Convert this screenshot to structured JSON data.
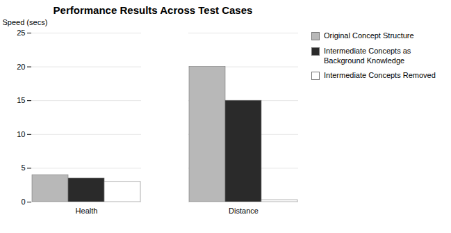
{
  "chart_data": {
    "type": "bar",
    "title": "Performance Results Across Test Cases",
    "ylabel": "Speed (secs)",
    "categories": [
      "Health",
      "Distance"
    ],
    "series": [
      {
        "name": "Original Concept Structure",
        "color": "#b8b8b8",
        "values": [
          4.0,
          20.0
        ]
      },
      {
        "name": "Intermediate Concepts as\nBackground Knowledge",
        "color": "#2a2a2a",
        "values": [
          3.5,
          15.0
        ]
      },
      {
        "name": "Intermediate Concepts Removed",
        "color": "#ffffff",
        "values": [
          3.0,
          0.3
        ]
      }
    ],
    "ylim": [
      0,
      25
    ],
    "yticks": [
      0,
      5,
      10,
      15,
      20,
      25
    ],
    "grid": true,
    "legend": "right"
  }
}
